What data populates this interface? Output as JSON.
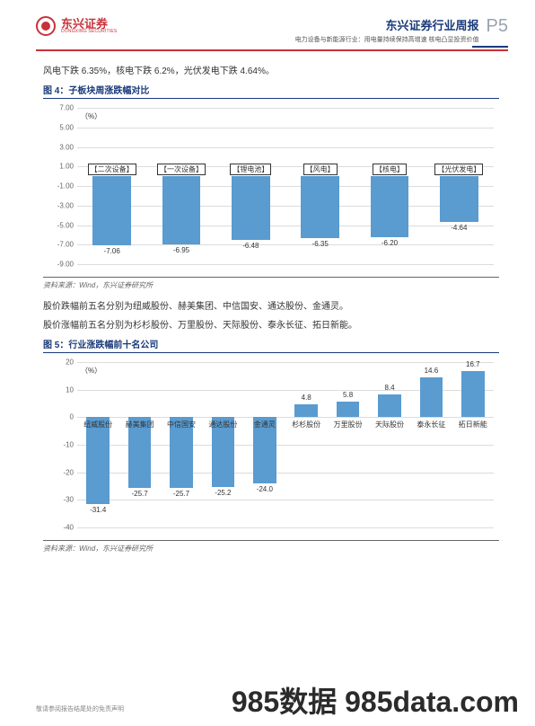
{
  "header": {
    "logo_cn": "东兴证券",
    "logo_en": "DONGXING SECURITIES",
    "title": "东兴证券行业周报",
    "subtitle": "电力设备与新能源行业：用电量持续保持高增速 核电凸显投资价值",
    "page": "P5"
  },
  "intro_line": "风电下跌 6.35%，核电下跌 6.2%，光伏发电下跌 4.64%。",
  "fig4": {
    "title": "图 4：子板块周涨跌幅对比",
    "unit": "（%）",
    "ymin": -9,
    "ymax": 7,
    "ystep": 2,
    "bar_color": "#5a9bd0",
    "grid_color": "#dcdcdc",
    "categories": [
      "【二次设备】",
      "【一次设备】",
      "【锂电池】",
      "【风电】",
      "【核电】",
      "【光伏发电】"
    ],
    "values": [
      -7.06,
      -6.95,
      -6.48,
      -6.35,
      -6.2,
      -4.64
    ]
  },
  "source_text": "资料来源：Wind，东兴证券研究所",
  "para2": "股价跌幅前五名分别为纽威股份、赫美集团、中信国安、通达股份、金通灵。",
  "para3": "股价涨幅前五名分别为杉杉股份、万里股份、天际股份、泰永长征、拓日新能。",
  "fig5": {
    "title": "图 5：行业涨跌幅前十名公司",
    "unit": "（%）",
    "ymin": -40,
    "ymax": 20,
    "ystep": 10,
    "bar_color": "#5a9bd0",
    "grid_color": "#dcdcdc",
    "categories": [
      "纽威股份",
      "赫美集团",
      "中信国安",
      "通达股份",
      "金通灵",
      "杉杉股份",
      "万里股份",
      "天际股份",
      "泰永长征",
      "拓日新能"
    ],
    "values": [
      -31.4,
      -25.7,
      -25.7,
      -25.2,
      -24.0,
      4.8,
      5.8,
      8.4,
      14.6,
      16.7
    ]
  },
  "footer_disclaimer": "敬请参阅报告结尾处的免责声明",
  "watermark": "985数据 985data.com"
}
